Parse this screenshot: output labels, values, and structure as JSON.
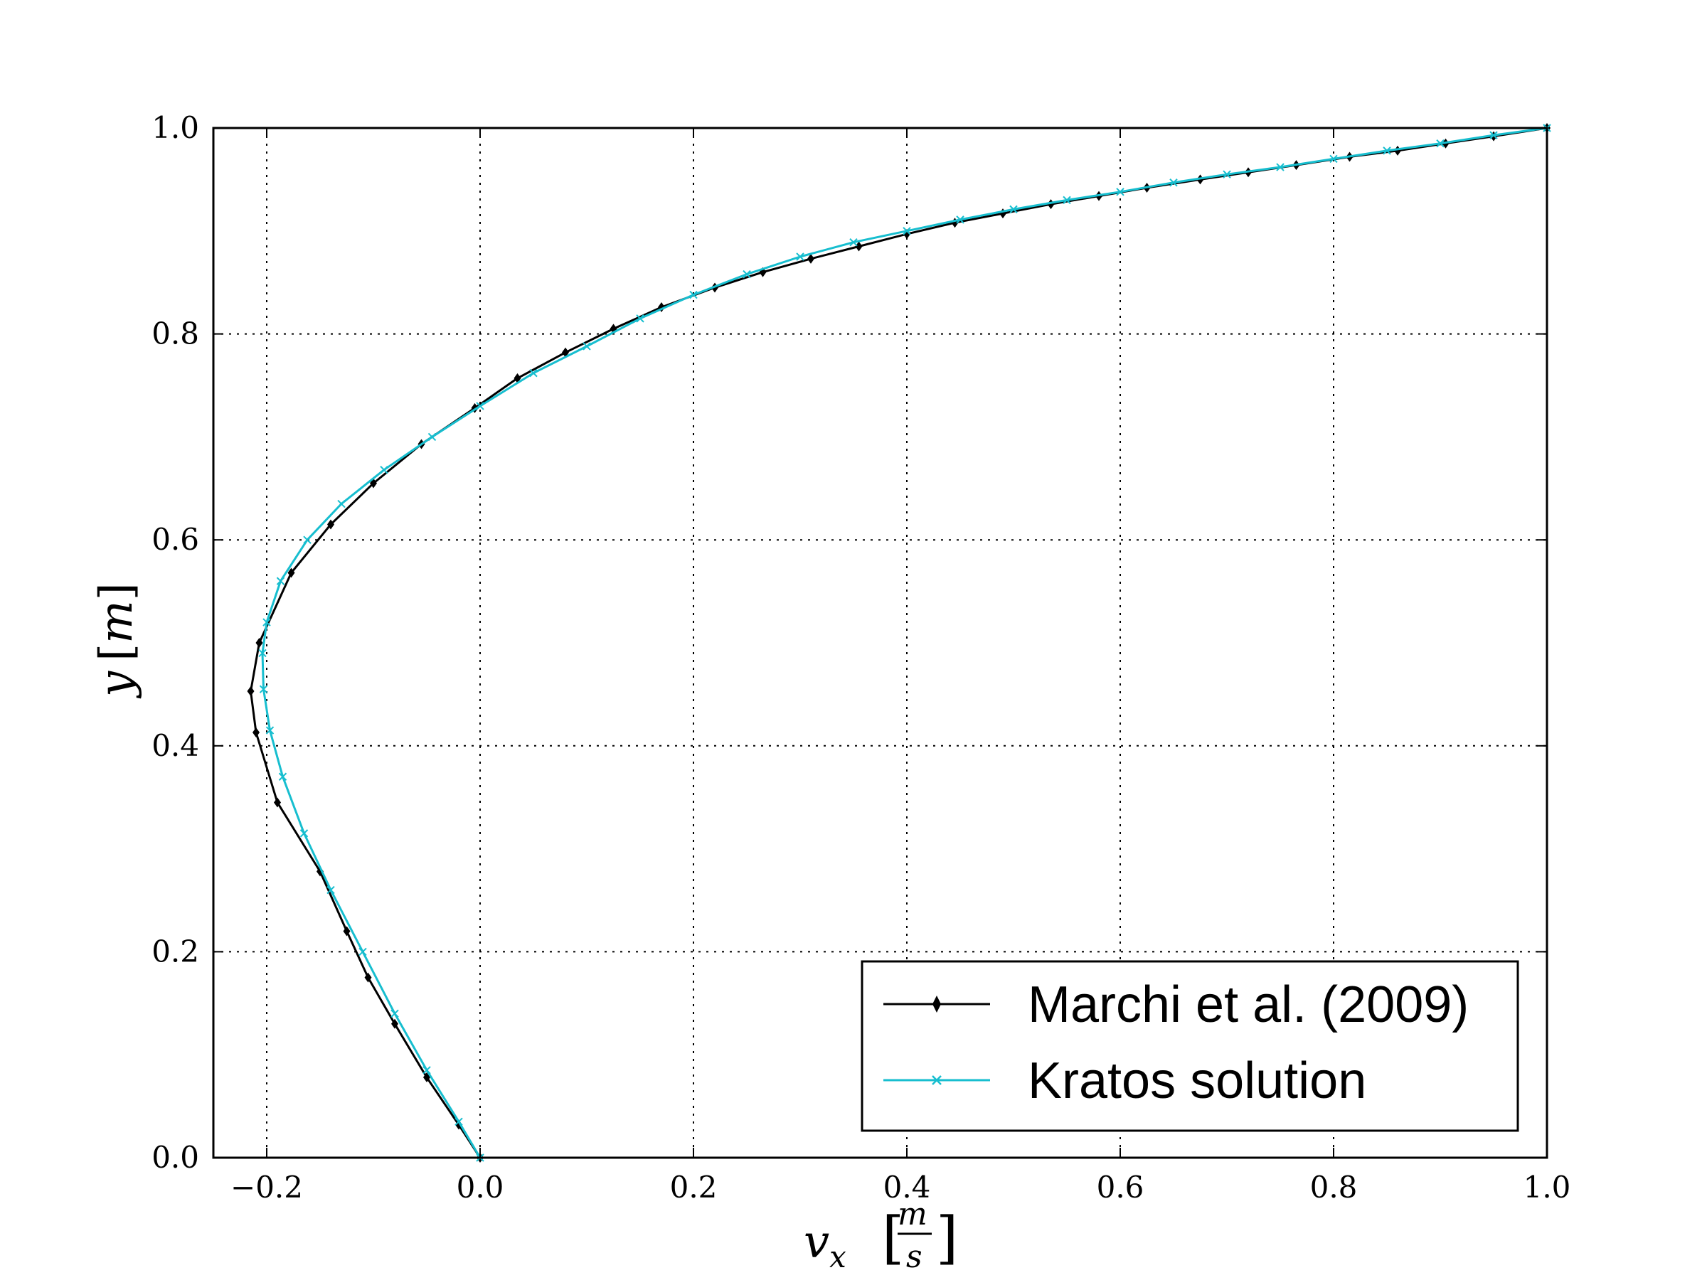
{
  "colors": {
    "marchi": "#000000",
    "kratos": "#17becf",
    "grid": "#000000",
    "axes": "#000000"
  },
  "chart_data": {
    "type": "line",
    "xlabel": {
      "main": "v",
      "sub": "x",
      "unit_num": "m",
      "unit_den": "s"
    },
    "ylabel": {
      "main": "y",
      "unit": "m"
    },
    "xlim": [
      -0.25,
      1.0
    ],
    "ylim": [
      0.0,
      1.0
    ],
    "xticks": [
      -0.2,
      0.0,
      0.2,
      0.4,
      0.6,
      0.8,
      1.0
    ],
    "xtick_labels": [
      "−0.2",
      "0.0",
      "0.2",
      "0.4",
      "0.6",
      "0.8",
      "1.0"
    ],
    "yticks": [
      0.0,
      0.2,
      0.4,
      0.6,
      0.8,
      1.0
    ],
    "ytick_labels": [
      "0.0",
      "0.2",
      "0.4",
      "0.6",
      "0.8",
      "1.0"
    ],
    "grid": true,
    "legend_position": "bottom-right",
    "series": [
      {
        "name": "Marchi et al. (2009)",
        "color": "#000000",
        "marker": "diamond",
        "x": [
          0.0,
          -0.02,
          -0.05,
          -0.08,
          -0.105,
          -0.125,
          -0.15,
          -0.19,
          -0.21,
          -0.215,
          -0.207,
          -0.177,
          -0.14,
          -0.1,
          -0.055,
          -0.005,
          0.035,
          0.08,
          0.125,
          0.17,
          0.22,
          0.265,
          0.31,
          0.355,
          0.4,
          0.445,
          0.49,
          0.535,
          0.58,
          0.625,
          0.675,
          0.72,
          0.765,
          0.815,
          0.86,
          0.905,
          0.95,
          1.0
        ],
        "y": [
          0.0,
          0.032,
          0.078,
          0.13,
          0.175,
          0.22,
          0.278,
          0.345,
          0.413,
          0.453,
          0.5,
          0.568,
          0.615,
          0.655,
          0.693,
          0.728,
          0.757,
          0.782,
          0.805,
          0.826,
          0.845,
          0.86,
          0.873,
          0.885,
          0.897,
          0.908,
          0.917,
          0.926,
          0.934,
          0.942,
          0.95,
          0.957,
          0.964,
          0.972,
          0.978,
          0.985,
          0.992,
          1.0
        ]
      },
      {
        "name": "Kratos solution",
        "color": "#17becf",
        "marker": "x",
        "x": [
          0.0,
          -0.02,
          -0.05,
          -0.08,
          -0.11,
          -0.14,
          -0.165,
          -0.185,
          -0.197,
          -0.203,
          -0.204,
          -0.2,
          -0.187,
          -0.162,
          -0.13,
          -0.09,
          -0.045,
          0.0,
          0.05,
          0.1,
          0.15,
          0.2,
          0.25,
          0.3,
          0.35,
          0.4,
          0.45,
          0.5,
          0.55,
          0.6,
          0.65,
          0.7,
          0.75,
          0.8,
          0.85,
          0.9,
          0.95,
          1.0
        ],
        "y": [
          0.0,
          0.035,
          0.085,
          0.14,
          0.2,
          0.26,
          0.315,
          0.37,
          0.415,
          0.455,
          0.49,
          0.52,
          0.56,
          0.6,
          0.635,
          0.668,
          0.7,
          0.73,
          0.762,
          0.788,
          0.815,
          0.838,
          0.858,
          0.875,
          0.889,
          0.9,
          0.911,
          0.921,
          0.93,
          0.938,
          0.947,
          0.955,
          0.962,
          0.97,
          0.978,
          0.985,
          0.993,
          1.0
        ]
      }
    ]
  }
}
